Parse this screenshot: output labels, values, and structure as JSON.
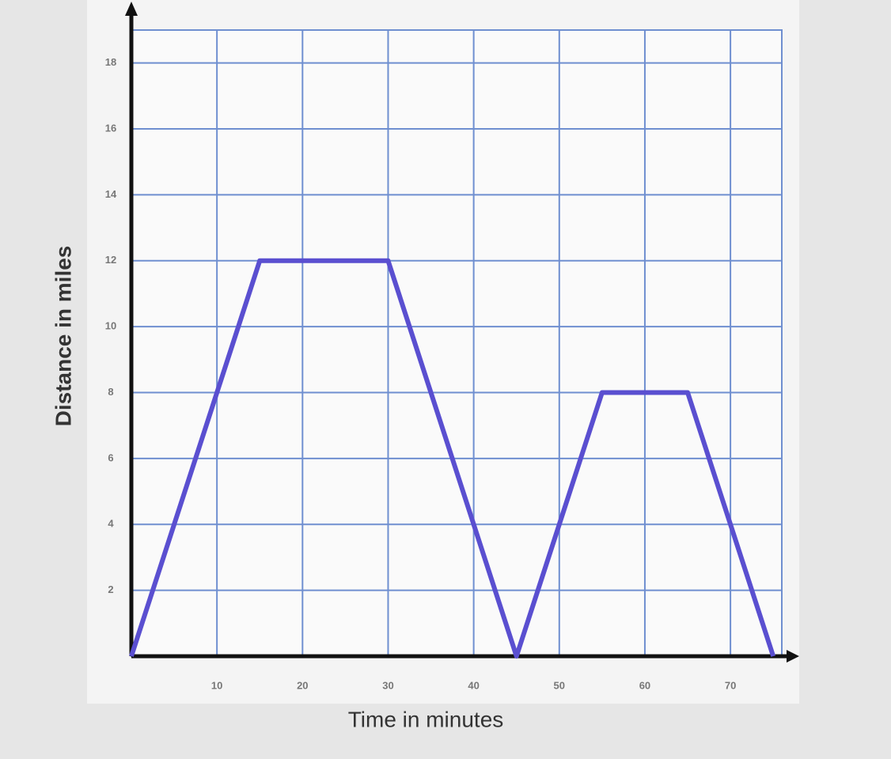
{
  "chart_data": {
    "type": "line",
    "x_label": "Time in minutes",
    "y_label": "Distance in miles",
    "x": [
      0,
      15,
      30,
      45,
      55,
      65,
      75
    ],
    "series": [
      {
        "color": "#5a4fd0",
        "values": [
          0,
          12,
          12,
          0,
          8,
          8,
          0
        ]
      }
    ],
    "xlim": [
      0,
      76
    ],
    "ylim": [
      0,
      19
    ],
    "xticks": [
      10,
      20,
      30,
      40,
      50,
      60,
      70
    ],
    "yticks": [
      2,
      4,
      6,
      8,
      10,
      12,
      14,
      16,
      18
    ],
    "grid": true,
    "grid_color": "#6f8fd0"
  }
}
